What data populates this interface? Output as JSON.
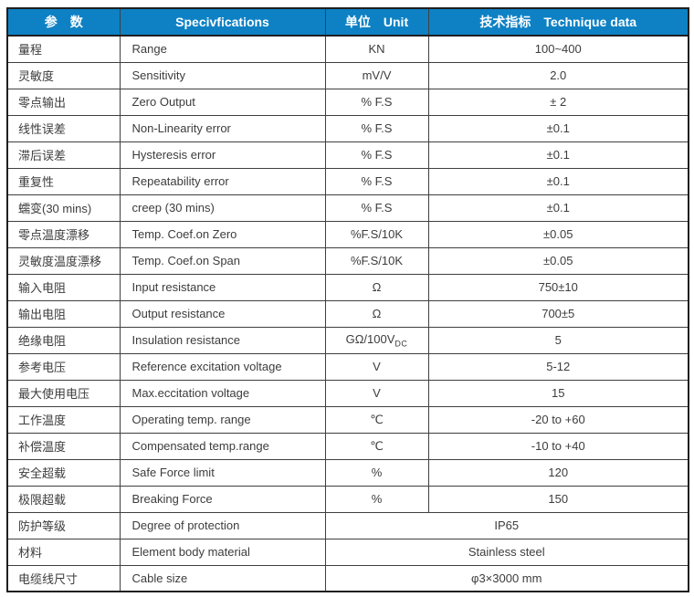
{
  "header": {
    "col1": "参　数",
    "col2": "Specivfications",
    "col3": "单位　Unit",
    "col4": "技术指标　Technique data"
  },
  "colors": {
    "header_bg": "#0e81c4",
    "header_text": "#ffffff",
    "grid_line": "#3f3f3f",
    "outer_border": "#1f1f1f",
    "body_text": "#3c3c3c",
    "row_bg": "#ffffff"
  },
  "rows": [
    {
      "param": "量程",
      "spec": "Range",
      "unit": "KN",
      "value": "100~400"
    },
    {
      "param": "灵敏度",
      "spec": "Sensitivity",
      "unit": "mV/V",
      "value": "2.0"
    },
    {
      "param": "零点输出",
      "spec": "Zero Output",
      "unit": "% F.S",
      "value": "± 2"
    },
    {
      "param": "线性误差",
      "spec": "Non-Linearity error",
      "unit": "% F.S",
      "value": "±0.1"
    },
    {
      "param": "滞后误差",
      "spec": "Hysteresis error",
      "unit": "% F.S",
      "value": "±0.1"
    },
    {
      "param": "重复性",
      "spec": "Repeatability error",
      "unit": "% F.S",
      "value": "±0.1"
    },
    {
      "param": "蠕变(30 mins)",
      "spec": "creep (30 mins)",
      "unit": "% F.S",
      "value": "±0.1"
    },
    {
      "param": "零点温度漂移",
      "spec": "Temp. Coef.on Zero",
      "unit": "%F.S/10K",
      "value": "±0.05"
    },
    {
      "param": "灵敏度温度漂移",
      "spec": "Temp. Coef.on Span",
      "unit": "%F.S/10K",
      "value": "±0.05"
    },
    {
      "param": "输入电阻",
      "spec": "Input resistance",
      "unit": "Ω",
      "value": "750±10"
    },
    {
      "param": "输出电阻",
      "spec": "Output resistance",
      "unit": "Ω",
      "value": "700±5"
    },
    {
      "param": "绝缘电阻",
      "spec": "Insulation resistance",
      "unit": "GΩ/100V",
      "unit_sub": "DC",
      "value": "5"
    },
    {
      "param": "参考电压",
      "spec": "Reference excitation voltage",
      "unit": "V",
      "value": "5-12"
    },
    {
      "param": "最大使用电压",
      "spec": "Max.eccitation voltage",
      "unit": "V",
      "value": "15"
    },
    {
      "param": "工作温度",
      "spec": "Operating temp. range",
      "unit": "℃",
      "value": "-20 to +60"
    },
    {
      "param": "补偿温度",
      "spec": "Compensated temp.range",
      "unit": "℃",
      "value": "-10 to +40"
    },
    {
      "param": "安全超载",
      "spec": "Safe Force limit",
      "unit": "%",
      "value": "120"
    },
    {
      "param": "极限超载",
      "spec": "Breaking Force",
      "unit": "%",
      "value": "150"
    },
    {
      "param": "防护等级",
      "spec": "Degree of protection",
      "merged": true,
      "value": "IP65"
    },
    {
      "param": "材料",
      "spec": "Element body material",
      "merged": true,
      "value": "Stainless steel"
    },
    {
      "param": "电缆线尺寸",
      "spec": "Cable size",
      "merged": true,
      "value": "φ3×3000 mm"
    }
  ]
}
